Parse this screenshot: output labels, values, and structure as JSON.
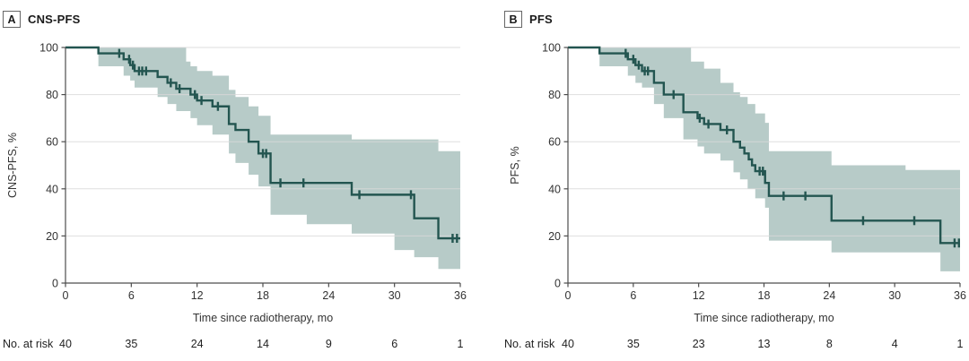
{
  "panels": [
    {
      "tag": "A",
      "title": "CNS-PFS"
    },
    {
      "tag": "B",
      "title": "PFS"
    }
  ],
  "colors": {
    "curve": "#235550",
    "ci_band": "#b7cbc8",
    "gridline": "#d9d9d9",
    "axis": "#4d4d4d",
    "text": "#333333",
    "background": "#ffffff"
  },
  "chart_data": [
    {
      "type": "line",
      "subtype": "kaplan_meier_step",
      "panel_label": "A",
      "title": "CNS-PFS",
      "xlabel": "Time since radiotherapy, mo",
      "ylabel": "CNS-PFS, %",
      "xlim": [
        0,
        36
      ],
      "ylim": [
        0,
        100
      ],
      "x_ticks": [
        0,
        6,
        12,
        18,
        24,
        30,
        36
      ],
      "y_ticks": [
        0,
        20,
        40,
        60,
        80,
        100
      ],
      "grid": "horizontal-light",
      "legend": "none",
      "steps": [
        [
          0,
          100
        ],
        [
          3.0,
          97.5
        ],
        [
          5.3,
          95
        ],
        [
          5.9,
          92.5
        ],
        [
          6.3,
          90
        ],
        [
          8.4,
          87.5
        ],
        [
          9.3,
          85
        ],
        [
          10.1,
          82.5
        ],
        [
          11.4,
          80
        ],
        [
          12.0,
          77.5
        ],
        [
          13.4,
          75
        ],
        [
          14.9,
          67.5
        ],
        [
          15.5,
          65
        ],
        [
          16.7,
          60
        ],
        [
          17.6,
          55
        ],
        [
          18.7,
          42.5
        ],
        [
          26.1,
          37.5
        ],
        [
          31.8,
          27.5
        ],
        [
          34.0,
          19
        ]
      ],
      "censor_marks": [
        [
          4.9,
          97.5
        ],
        [
          5.8,
          95
        ],
        [
          6.15,
          92.5
        ],
        [
          6.7,
          90
        ],
        [
          7.0,
          90
        ],
        [
          7.35,
          90
        ],
        [
          9.6,
          85
        ],
        [
          10.4,
          82.5
        ],
        [
          11.8,
          80
        ],
        [
          12.4,
          77.5
        ],
        [
          13.9,
          75
        ],
        [
          18.0,
          55
        ],
        [
          18.3,
          55
        ],
        [
          19.6,
          42.5
        ],
        [
          21.7,
          42.5
        ],
        [
          26.8,
          37.5
        ],
        [
          31.5,
          37.5
        ],
        [
          35.3,
          19
        ],
        [
          35.7,
          19
        ]
      ],
      "ci_band": [
        [
          3,
          92,
          100
        ],
        [
          5.3,
          88,
          100
        ],
        [
          5.9,
          86,
          100
        ],
        [
          6.3,
          83,
          100
        ],
        [
          8.4,
          79,
          100
        ],
        [
          9.3,
          76,
          100
        ],
        [
          10.1,
          73,
          100
        ],
        [
          11.0,
          73,
          94
        ],
        [
          11.4,
          70,
          92
        ],
        [
          12.0,
          67,
          90
        ],
        [
          13.4,
          63,
          88
        ],
        [
          14.9,
          55,
          82
        ],
        [
          15.5,
          51,
          79
        ],
        [
          16.7,
          46,
          75
        ],
        [
          17.6,
          41,
          71
        ],
        [
          18.7,
          29,
          63
        ],
        [
          22.0,
          25,
          63
        ],
        [
          26.1,
          21,
          61
        ],
        [
          30.0,
          14,
          61
        ],
        [
          31.8,
          11,
          61
        ],
        [
          34.0,
          6,
          56
        ]
      ],
      "no_at_risk": {
        "label": "No. at risk",
        "times": [
          0,
          6,
          12,
          18,
          24,
          30,
          36
        ],
        "counts": [
          40,
          35,
          24,
          14,
          9,
          6,
          1
        ]
      }
    },
    {
      "type": "line",
      "subtype": "kaplan_meier_step",
      "panel_label": "B",
      "title": "PFS",
      "xlabel": "Time since radiotherapy, mo",
      "ylabel": "PFS, %",
      "xlim": [
        0,
        36
      ],
      "ylim": [
        0,
        100
      ],
      "x_ticks": [
        0,
        6,
        12,
        18,
        24,
        30,
        36
      ],
      "y_ticks": [
        0,
        20,
        40,
        60,
        80,
        100
      ],
      "grid": "horizontal-light",
      "legend": "none",
      "steps": [
        [
          0,
          100
        ],
        [
          2.9,
          97.5
        ],
        [
          5.5,
          95
        ],
        [
          6.2,
          92.5
        ],
        [
          6.8,
          90
        ],
        [
          7.9,
          85
        ],
        [
          8.8,
          80
        ],
        [
          10.6,
          72.5
        ],
        [
          11.9,
          70
        ],
        [
          12.5,
          67.5
        ],
        [
          14.0,
          65
        ],
        [
          15.2,
          60
        ],
        [
          15.8,
          57.5
        ],
        [
          16.2,
          55
        ],
        [
          16.6,
          52.5
        ],
        [
          16.9,
          50
        ],
        [
          17.2,
          47.5
        ],
        [
          18.1,
          42.5
        ],
        [
          18.45,
          37
        ],
        [
          24.2,
          26.5
        ],
        [
          34.2,
          17
        ]
      ],
      "censor_marks": [
        [
          5.3,
          97.5
        ],
        [
          6.0,
          95
        ],
        [
          6.5,
          92.5
        ],
        [
          7.05,
          90
        ],
        [
          7.35,
          90
        ],
        [
          9.7,
          80
        ],
        [
          12.1,
          70
        ],
        [
          12.9,
          67.5
        ],
        [
          14.6,
          65
        ],
        [
          17.6,
          47.5
        ],
        [
          17.9,
          47.5
        ],
        [
          19.8,
          37
        ],
        [
          21.8,
          37
        ],
        [
          27.1,
          26.5
        ],
        [
          31.8,
          26.5
        ],
        [
          35.5,
          17
        ],
        [
          35.9,
          17
        ]
      ],
      "ci_band": [
        [
          2.9,
          92,
          100
        ],
        [
          5.5,
          88,
          100
        ],
        [
          6.2,
          85,
          100
        ],
        [
          6.8,
          83,
          100
        ],
        [
          7.9,
          76,
          100
        ],
        [
          8.8,
          70,
          100
        ],
        [
          10.6,
          61,
          100
        ],
        [
          11.3,
          61,
          94
        ],
        [
          11.9,
          58,
          94
        ],
        [
          12.5,
          55,
          91
        ],
        [
          14.0,
          52,
          85
        ],
        [
          15.2,
          47,
          81
        ],
        [
          15.8,
          44,
          79
        ],
        [
          16.5,
          40,
          76
        ],
        [
          17.2,
          36,
          72
        ],
        [
          18.1,
          32,
          68
        ],
        [
          18.45,
          18,
          56
        ],
        [
          24.2,
          13,
          50
        ],
        [
          31.0,
          13,
          48
        ],
        [
          34.2,
          5,
          48
        ]
      ],
      "no_at_risk": {
        "label": "No. at risk",
        "times": [
          0,
          6,
          12,
          18,
          24,
          30,
          36
        ],
        "counts": [
          40,
          35,
          23,
          13,
          8,
          4,
          1
        ]
      }
    }
  ]
}
